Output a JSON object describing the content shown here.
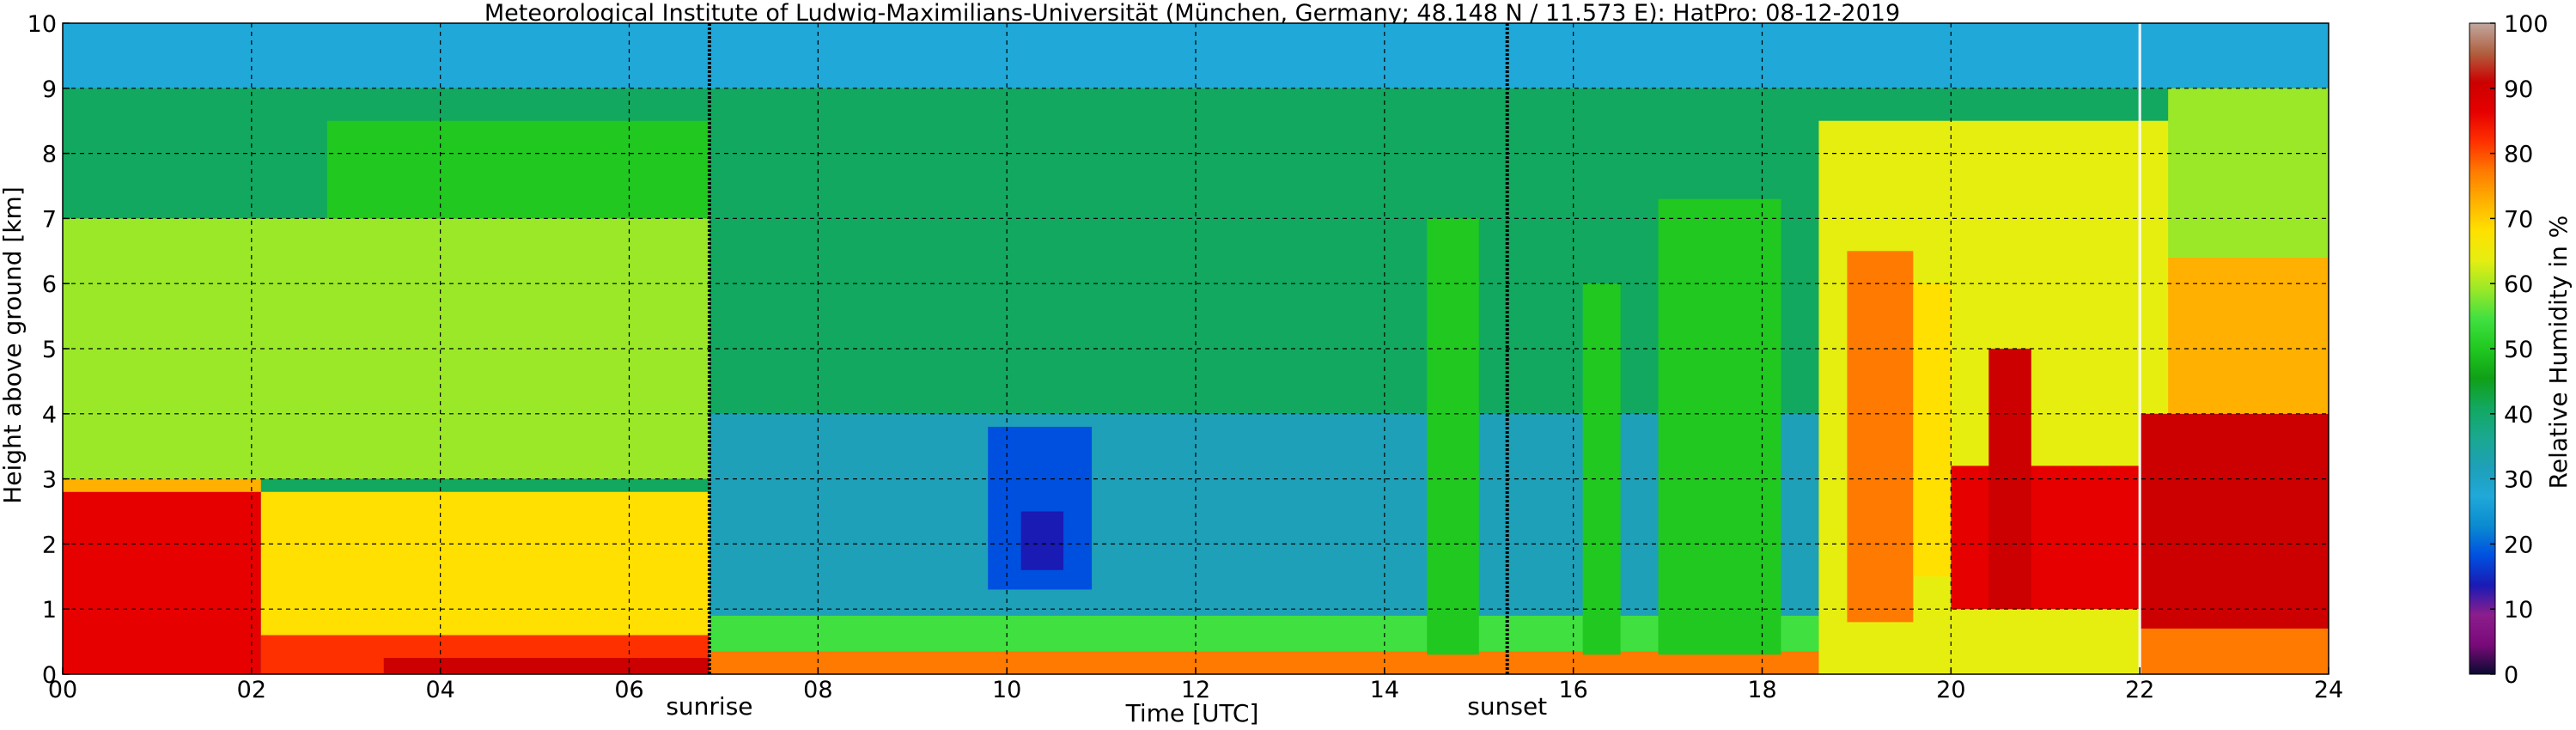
{
  "chart_data": {
    "type": "heatmap",
    "title": "Meteorological Institute of Ludwig-Maximilians-Universität (München, Germany; 48.148 N / 11.573 E):    HatPro: 08-12-2019",
    "xlabel": "Time [UTC]",
    "ylabel": "Height above ground [km]",
    "xlim": [
      0,
      24
    ],
    "ylim": [
      0,
      10
    ],
    "x_ticks": [
      "00",
      "02",
      "04",
      "06",
      "08",
      "10",
      "12",
      "14",
      "16",
      "18",
      "20",
      "22",
      "24"
    ],
    "y_ticks": [
      "0",
      "1",
      "2",
      "3",
      "4",
      "5",
      "6",
      "7",
      "8",
      "9",
      "10"
    ],
    "grid": true,
    "colorbar": {
      "label": "Relative Humidity in %",
      "min": 0,
      "max": 100,
      "ticks": [
        "0",
        "10",
        "20",
        "30",
        "40",
        "50",
        "60",
        "70",
        "80",
        "90",
        "100"
      ],
      "colors": [
        "#0a0a30",
        "#7a0a7a",
        "#8c1e8c",
        "#1a1ab4",
        "#0050e0",
        "#0a8ad0",
        "#20a8d8",
        "#1ea0b8",
        "#1aa890",
        "#12a860",
        "#10a018",
        "#20c820",
        "#40e040",
        "#9ae828",
        "#e6ee10",
        "#ffe000",
        "#ffb000",
        "#ff7a00",
        "#ff3000",
        "#e60000",
        "#cc0000",
        "#b06040",
        "#c0a8a0"
      ]
    },
    "annotations": [
      {
        "text": "sunrise",
        "x": 6.85
      },
      {
        "text": "sunset",
        "x": 15.3
      }
    ],
    "markers": [
      22
    ],
    "regions": [
      {
        "t0": 0,
        "t1": 2.1,
        "h0": 0.0,
        "h1": 2.8,
        "rh": 87
      },
      {
        "t0": 0,
        "t1": 2.1,
        "h0": 2.8,
        "h1": 3.2,
        "rh": 74
      },
      {
        "t0": 0,
        "t1": 6.85,
        "h0": 3.0,
        "h1": 7.0,
        "rh": 58
      },
      {
        "t0": 2.1,
        "t1": 6.85,
        "h0": 0.0,
        "h1": 0.6,
        "rh": 82
      },
      {
        "t0": 2.1,
        "t1": 6.85,
        "h0": 0.6,
        "h1": 2.8,
        "rh": 70
      },
      {
        "t0": 2.8,
        "t1": 6.85,
        "h0": 7.0,
        "h1": 8.5,
        "rh": 52
      },
      {
        "t0": 3.4,
        "t1": 6.85,
        "h0": 0.0,
        "h1": 0.25,
        "rh": 90
      },
      {
        "t0": 6.85,
        "t1": 18.6,
        "h0": 0.0,
        "h1": 0.35,
        "rh": 75
      },
      {
        "t0": 6.85,
        "t1": 18.6,
        "h0": 0.35,
        "h1": 0.9,
        "rh": 55
      },
      {
        "t0": 6.85,
        "t1": 18.6,
        "h0": 0.9,
        "h1": 4.0,
        "rh": 30
      },
      {
        "t0": 9.8,
        "t1": 10.9,
        "h0": 1.3,
        "h1": 3.8,
        "rh": 20
      },
      {
        "t0": 10.15,
        "t1": 10.6,
        "h0": 1.6,
        "h1": 2.5,
        "rh": 14
      },
      {
        "t0": 14.45,
        "t1": 15.0,
        "h0": 0.3,
        "h1": 7.0,
        "rh": 50
      },
      {
        "t0": 16.1,
        "t1": 16.5,
        "h0": 0.3,
        "h1": 6.0,
        "rh": 52
      },
      {
        "t0": 16.9,
        "t1": 18.2,
        "h0": 0.3,
        "h1": 7.3,
        "rh": 52
      },
      {
        "t0": 18.6,
        "t1": 24,
        "h0": 0.0,
        "h1": 8.5,
        "rh": 64
      },
      {
        "t0": 18.9,
        "t1": 19.6,
        "h0": 0.8,
        "h1": 6.5,
        "rh": 78
      },
      {
        "t0": 19.6,
        "t1": 20.0,
        "h0": 1.5,
        "h1": 6.0,
        "rh": 70
      },
      {
        "t0": 20.0,
        "t1": 22.0,
        "h0": 1.0,
        "h1": 3.2,
        "rh": 88
      },
      {
        "t0": 20.4,
        "t1": 20.85,
        "h0": 1.0,
        "h1": 5.0,
        "rh": 90
      },
      {
        "t0": 22.0,
        "t1": 24,
        "h0": 0.7,
        "h1": 4.0,
        "rh": 91
      },
      {
        "t0": 22.3,
        "t1": 24,
        "h0": 4.0,
        "h1": 6.4,
        "rh": 72
      },
      {
        "t0": 22.3,
        "t1": 24,
        "h0": 6.4,
        "h1": 9.0,
        "rh": 58
      },
      {
        "t0": 22.0,
        "t1": 24,
        "h0": 0.0,
        "h1": 0.7,
        "rh": 75
      }
    ],
    "upper_band": {
      "h0": 9.0,
      "h1": 10.0,
      "rh": 25
    }
  }
}
